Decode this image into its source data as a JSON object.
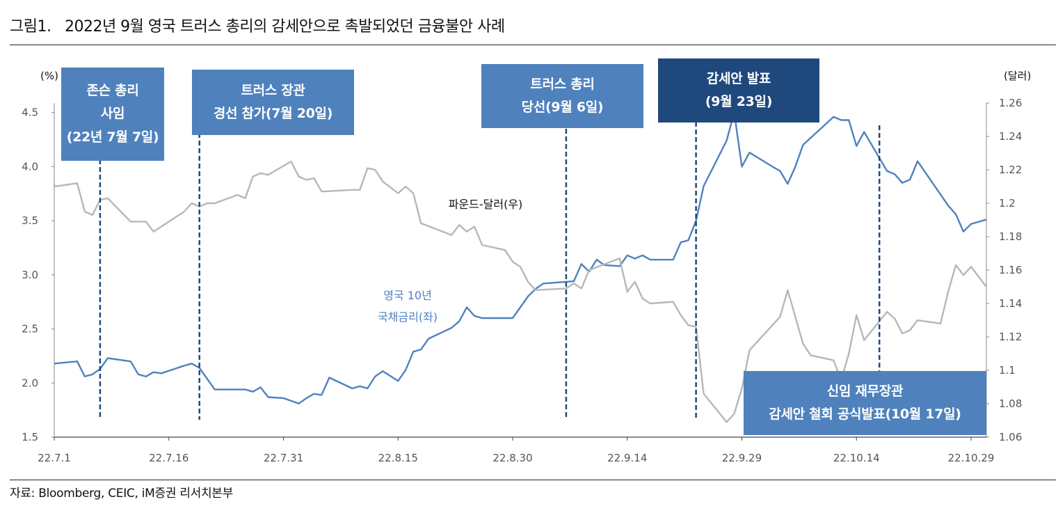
{
  "figure": {
    "title": "그림1.   2022년 9월 영국 트러스 총리의 감세안으로 촉발되었던 금융불안 사례",
    "source": "자료: Bloomberg, CEIC, iM증권 리서치본부"
  },
  "chart_data": {
    "type": "line",
    "x_labels": [
      "22.7.1",
      "22.7.16",
      "22.7.31",
      "22.8.15",
      "22.8.30",
      "22.9.14",
      "22.9.29",
      "22.10.14",
      "22.10.29"
    ],
    "y_left": {
      "unit": "(%)",
      "ticks": [
        "1.5",
        "2.0",
        "2.5",
        "3.0",
        "3.5",
        "4.0",
        "4.5"
      ],
      "range": [
        1.5,
        4.8
      ]
    },
    "y_right": {
      "unit": "(달러)",
      "ticks": [
        "1.06",
        "1.08",
        "1.1",
        "1.12",
        "1.14",
        "1.16",
        "1.18",
        "1.2",
        "1.22",
        "1.24",
        "1.26"
      ],
      "range": [
        1.06,
        1.26
      ]
    },
    "grid": false,
    "series": [
      {
        "name": "영국 10년 국채금리(좌)",
        "label_lines": [
          "영국 10년",
          "국채금리(좌)"
        ],
        "axis": "left",
        "color": "#4f81bd",
        "points": [
          [
            "2022-07-01",
            2.18
          ],
          [
            "2022-07-04",
            2.2
          ],
          [
            "2022-07-05",
            2.06
          ],
          [
            "2022-07-06",
            2.08
          ],
          [
            "2022-07-07",
            2.13
          ],
          [
            "2022-07-08",
            2.23
          ],
          [
            "2022-07-11",
            2.2
          ],
          [
            "2022-07-12",
            2.08
          ],
          [
            "2022-07-13",
            2.06
          ],
          [
            "2022-07-14",
            2.1
          ],
          [
            "2022-07-15",
            2.09
          ],
          [
            "2022-07-18",
            2.16
          ],
          [
            "2022-07-19",
            2.18
          ],
          [
            "2022-07-20",
            2.14
          ],
          [
            "2022-07-21",
            2.04
          ],
          [
            "2022-07-22",
            1.94
          ],
          [
            "2022-07-25",
            1.94
          ],
          [
            "2022-07-26",
            1.94
          ],
          [
            "2022-07-27",
            1.92
          ],
          [
            "2022-07-28",
            1.96
          ],
          [
            "2022-07-29",
            1.87
          ],
          [
            "2022-07-31",
            1.86
          ],
          [
            "2022-08-02",
            1.81
          ],
          [
            "2022-08-03",
            1.86
          ],
          [
            "2022-08-04",
            1.9
          ],
          [
            "2022-08-05",
            1.89
          ],
          [
            "2022-08-06",
            2.05
          ],
          [
            "2022-08-09",
            1.95
          ],
          [
            "2022-08-10",
            1.97
          ],
          [
            "2022-08-11",
            1.95
          ],
          [
            "2022-08-12",
            2.06
          ],
          [
            "2022-08-13",
            2.11
          ],
          [
            "2022-08-15",
            2.02
          ],
          [
            "2022-08-16",
            2.12
          ],
          [
            "2022-08-17",
            2.29
          ],
          [
            "2022-08-18",
            2.31
          ],
          [
            "2022-08-19",
            2.41
          ],
          [
            "2022-08-22",
            2.51
          ],
          [
            "2022-08-23",
            2.57
          ],
          [
            "2022-08-24",
            2.7
          ],
          [
            "2022-08-25",
            2.62
          ],
          [
            "2022-08-26",
            2.6
          ],
          [
            "2022-08-30",
            2.6
          ],
          [
            "2022-08-31",
            2.7
          ],
          [
            "2022-09-01",
            2.8
          ],
          [
            "2022-09-02",
            2.87
          ],
          [
            "2022-09-03",
            2.92
          ],
          [
            "2022-09-07",
            2.94
          ],
          [
            "2022-09-08",
            3.1
          ],
          [
            "2022-09-09",
            3.03
          ],
          [
            "2022-09-10",
            3.14
          ],
          [
            "2022-09-11",
            3.09
          ],
          [
            "2022-09-13",
            3.08
          ],
          [
            "2022-09-14",
            3.18
          ],
          [
            "2022-09-15",
            3.15
          ],
          [
            "2022-09-16",
            3.18
          ],
          [
            "2022-09-17",
            3.14
          ],
          [
            "2022-09-20",
            3.14
          ],
          [
            "2022-09-21",
            3.3
          ],
          [
            "2022-09-22",
            3.32
          ],
          [
            "2022-09-23",
            3.5
          ],
          [
            "2022-09-24",
            3.82
          ],
          [
            "2022-09-27",
            4.24
          ],
          [
            "2022-09-28",
            4.5
          ],
          [
            "2022-09-29",
            4.0
          ],
          [
            "2022-09-30",
            4.13
          ],
          [
            "2022-10-03",
            4.0
          ],
          [
            "2022-10-04",
            3.96
          ],
          [
            "2022-10-05",
            3.84
          ],
          [
            "2022-10-06",
            4.0
          ],
          [
            "2022-10-07",
            4.2
          ],
          [
            "2022-10-11",
            4.46
          ],
          [
            "2022-10-12",
            4.43
          ],
          [
            "2022-10-13",
            4.43
          ],
          [
            "2022-10-14",
            4.19
          ],
          [
            "2022-10-15",
            4.32
          ],
          [
            "2022-10-18",
            3.96
          ],
          [
            "2022-10-19",
            3.93
          ],
          [
            "2022-10-20",
            3.85
          ],
          [
            "2022-10-21",
            3.88
          ],
          [
            "2022-10-22",
            4.05
          ],
          [
            "2022-10-26",
            3.64
          ],
          [
            "2022-10-27",
            3.56
          ],
          [
            "2022-10-28",
            3.4
          ],
          [
            "2022-10-29",
            3.47
          ],
          [
            "2022-10-31",
            3.51
          ]
        ]
      },
      {
        "name": "파운드-달러(우)",
        "label_lines": [
          "파운드-달러(우)"
        ],
        "axis": "right",
        "color": "#b7b7b7",
        "points": [
          [
            "2022-07-01",
            1.212
          ],
          [
            "2022-07-01",
            1.21
          ],
          [
            "2022-07-04",
            1.212
          ],
          [
            "2022-07-05",
            1.195
          ],
          [
            "2022-07-06",
            1.193
          ],
          [
            "2022-07-07",
            1.202
          ],
          [
            "2022-07-08",
            1.203
          ],
          [
            "2022-07-11",
            1.189
          ],
          [
            "2022-07-12",
            1.189
          ],
          [
            "2022-07-13",
            1.189
          ],
          [
            "2022-07-14",
            1.183
          ],
          [
            "2022-07-18",
            1.195
          ],
          [
            "2022-07-19",
            1.2
          ],
          [
            "2022-07-20",
            1.198
          ],
          [
            "2022-07-21",
            1.2
          ],
          [
            "2022-07-22",
            1.2
          ],
          [
            "2022-07-25",
            1.205
          ],
          [
            "2022-07-26",
            1.203
          ],
          [
            "2022-07-27",
            1.216
          ],
          [
            "2022-07-28",
            1.218
          ],
          [
            "2022-07-29",
            1.217
          ],
          [
            "2022-08-01",
            1.225
          ],
          [
            "2022-08-02",
            1.216
          ],
          [
            "2022-08-03",
            1.214
          ],
          [
            "2022-08-04",
            1.215
          ],
          [
            "2022-08-05",
            1.207
          ],
          [
            "2022-08-09",
            1.208
          ],
          [
            "2022-08-10",
            1.208
          ],
          [
            "2022-08-11",
            1.221
          ],
          [
            "2022-08-12",
            1.22
          ],
          [
            "2022-08-13",
            1.213
          ],
          [
            "2022-08-15",
            1.206
          ],
          [
            "2022-08-16",
            1.21
          ],
          [
            "2022-08-17",
            1.206
          ],
          [
            "2022-08-18",
            1.188
          ],
          [
            "2022-08-22",
            1.181
          ],
          [
            "2022-08-23",
            1.187
          ],
          [
            "2022-08-24",
            1.183
          ],
          [
            "2022-08-25",
            1.186
          ],
          [
            "2022-08-26",
            1.175
          ],
          [
            "2022-08-29",
            1.172
          ],
          [
            "2022-08-30",
            1.165
          ],
          [
            "2022-08-31",
            1.162
          ],
          [
            "2022-09-01",
            1.153
          ],
          [
            "2022-09-02",
            1.148
          ],
          [
            "2022-09-06",
            1.149
          ],
          [
            "2022-09-07",
            1.152
          ],
          [
            "2022-09-08",
            1.149
          ],
          [
            "2022-09-09",
            1.16
          ],
          [
            "2022-09-13",
            1.167
          ],
          [
            "2022-09-14",
            1.147
          ],
          [
            "2022-09-15",
            1.153
          ],
          [
            "2022-09-16",
            1.143
          ],
          [
            "2022-09-17",
            1.14
          ],
          [
            "2022-09-20",
            1.141
          ],
          [
            "2022-09-21",
            1.133
          ],
          [
            "2022-09-22",
            1.127
          ],
          [
            "2022-09-23",
            1.126
          ],
          [
            "2022-09-24",
            1.086
          ],
          [
            "2022-09-27",
            1.069
          ],
          [
            "2022-09-28",
            1.074
          ],
          [
            "2022-09-29",
            1.089
          ],
          [
            "2022-09-30",
            1.112
          ],
          [
            "2022-10-04",
            1.132
          ],
          [
            "2022-10-05",
            1.148
          ],
          [
            "2022-10-06",
            1.132
          ],
          [
            "2022-10-07",
            1.116
          ],
          [
            "2022-10-08",
            1.109
          ],
          [
            "2022-10-11",
            1.106
          ],
          [
            "2022-10-12",
            1.094
          ],
          [
            "2022-10-13",
            1.11
          ],
          [
            "2022-10-14",
            1.133
          ],
          [
            "2022-10-15",
            1.118
          ],
          [
            "2022-10-18",
            1.135
          ],
          [
            "2022-10-19",
            1.131
          ],
          [
            "2022-10-20",
            1.122
          ],
          [
            "2022-10-21",
            1.124
          ],
          [
            "2022-10-22",
            1.13
          ],
          [
            "2022-10-25",
            1.128
          ],
          [
            "2022-10-26",
            1.147
          ],
          [
            "2022-10-27",
            1.163
          ],
          [
            "2022-10-28",
            1.157
          ],
          [
            "2022-10-29",
            1.162
          ],
          [
            "2022-10-31",
            1.15
          ]
        ]
      }
    ],
    "events": [
      {
        "date": "2022-07-07",
        "lines": [
          "존슨 총리",
          "사임",
          "(22년 7월 7일)"
        ],
        "style": "mid"
      },
      {
        "date": "2022-07-20",
        "lines": [
          "트러스 장관",
          "경선 참가(7월 20일)"
        ],
        "style": "mid"
      },
      {
        "date": "2022-09-06",
        "lines": [
          "트러스 총리",
          "당선(9월 6일)"
        ],
        "style": "mid"
      },
      {
        "date": "2022-09-23",
        "lines": [
          "감세안 발표",
          "(9월 23일)"
        ],
        "style": "dark"
      },
      {
        "date": "2022-10-17",
        "lines": [
          "신임 재무장관",
          "감세안 철회 공식발표(10월 17일)"
        ],
        "style": "mid"
      }
    ]
  }
}
